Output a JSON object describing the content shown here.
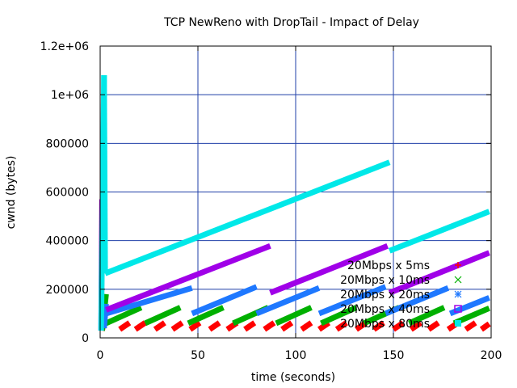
{
  "chart_data": {
    "type": "scatter",
    "title": "TCP NewReno with DropTail - Impact of Delay",
    "xlabel": "time (seconds)",
    "ylabel": "cwnd (bytes)",
    "xlim": [
      0,
      200
    ],
    "ylim": [
      0,
      1200000
    ],
    "x_ticks": [
      "0",
      "50",
      "100",
      "150",
      "200"
    ],
    "y_ticks": [
      "0",
      "200000",
      "400000",
      "600000",
      "800000",
      "1e+06",
      "1.2e+06"
    ],
    "grid": true,
    "legend_position": "bottom-right",
    "series": [
      {
        "name": "20Mbps x 5ms",
        "color": "#ff0000",
        "marker": "plus",
        "segments": [
          [
            [
              1,
              30000
            ],
            [
              2,
              70000
            ]
          ],
          [
            [
              10,
              35000
            ],
            [
              15,
              62000
            ]
          ],
          [
            [
              18,
              35000
            ],
            [
              23,
              62000
            ]
          ],
          [
            [
              28,
              35000
            ],
            [
              33,
              62000
            ]
          ],
          [
            [
              37,
              35000
            ],
            [
              42,
              62000
            ]
          ],
          [
            [
              46,
              35000
            ],
            [
              51,
              62000
            ]
          ],
          [
            [
              56,
              35000
            ],
            [
              61,
              62000
            ]
          ],
          [
            [
              65,
              35000
            ],
            [
              70,
              62000
            ]
          ],
          [
            [
              74,
              35000
            ],
            [
              79,
              62000
            ]
          ],
          [
            [
              84,
              35000
            ],
            [
              89,
              62000
            ]
          ],
          [
            [
              93,
              35000
            ],
            [
              98,
              62000
            ]
          ],
          [
            [
              103,
              35000
            ],
            [
              108,
              62000
            ]
          ],
          [
            [
              112,
              35000
            ],
            [
              117,
              62000
            ]
          ],
          [
            [
              121,
              35000
            ],
            [
              126,
              62000
            ]
          ],
          [
            [
              131,
              35000
            ],
            [
              136,
              62000
            ]
          ],
          [
            [
              140,
              35000
            ],
            [
              145,
              62000
            ]
          ],
          [
            [
              150,
              35000
            ],
            [
              155,
              62000
            ]
          ],
          [
            [
              159,
              35000
            ],
            [
              164,
              62000
            ]
          ],
          [
            [
              168,
              35000
            ],
            [
              173,
              62000
            ]
          ],
          [
            [
              178,
              35000
            ],
            [
              183,
              62000
            ]
          ],
          [
            [
              187,
              35000
            ],
            [
              192,
              62000
            ]
          ],
          [
            [
              195,
              35000
            ],
            [
              199,
              58000
            ]
          ]
        ]
      },
      {
        "name": "20Mbps x 10ms",
        "color": "#00b000",
        "marker": "x",
        "segments": [
          [
            [
              1,
              30000
            ],
            [
              3,
              180000
            ]
          ],
          [
            [
              3,
              60000
            ],
            [
              21,
              125000
            ]
          ],
          [
            [
              23,
              60000
            ],
            [
              41,
              125000
            ]
          ],
          [
            [
              45,
              60000
            ],
            [
              63,
              125000
            ]
          ],
          [
            [
              68,
              60000
            ],
            [
              86,
              125000
            ]
          ],
          [
            [
              90,
              60000
            ],
            [
              108,
              125000
            ]
          ],
          [
            [
              113,
              60000
            ],
            [
              131,
              125000
            ]
          ],
          [
            [
              135,
              60000
            ],
            [
              153,
              125000
            ]
          ],
          [
            [
              158,
              60000
            ],
            [
              176,
              125000
            ]
          ],
          [
            [
              181,
              60000
            ],
            [
              199,
              122000
            ]
          ]
        ]
      },
      {
        "name": "20Mbps x 20ms",
        "color": "#1e78ff",
        "marker": "star",
        "segments": [
          [
            [
              2,
              40000
            ],
            [
              3,
              140000
            ]
          ],
          [
            [
              3,
              100000
            ],
            [
              47,
              205000
            ]
          ],
          [
            [
              47,
              100000
            ],
            [
              80,
              210000
            ]
          ],
          [
            [
              80,
              100000
            ],
            [
              112,
              205000
            ]
          ],
          [
            [
              112,
              100000
            ],
            [
              146,
              210000
            ]
          ],
          [
            [
              146,
              100000
            ],
            [
              178,
              205000
            ]
          ],
          [
            [
              179,
              100000
            ],
            [
              199,
              165000
            ]
          ]
        ]
      },
      {
        "name": "20Mbps x 40ms",
        "color": "#a000e8",
        "marker": "square-open",
        "segments": [
          [
            [
              0.5,
              30000
            ],
            [
              1,
              570000
            ]
          ],
          [
            [
              3,
              115000
            ],
            [
              87,
              378000
            ]
          ],
          [
            [
              87,
              185000
            ],
            [
              147,
              378000
            ]
          ],
          [
            [
              148,
              185000
            ],
            [
              199,
              350000
            ]
          ]
        ]
      },
      {
        "name": "20Mbps x 80ms",
        "color": "#00e8e8",
        "marker": "square",
        "segments": [
          [
            [
              0.5,
              30000
            ],
            [
              2,
              1080000
            ]
          ],
          [
            [
              2,
              1080000
            ],
            [
              2.5,
              265000
            ]
          ],
          [
            [
              2.5,
              265000
            ],
            [
              148,
              722000
            ]
          ],
          [
            [
              148,
              358000
            ],
            [
              199,
              520000
            ]
          ]
        ]
      }
    ]
  }
}
